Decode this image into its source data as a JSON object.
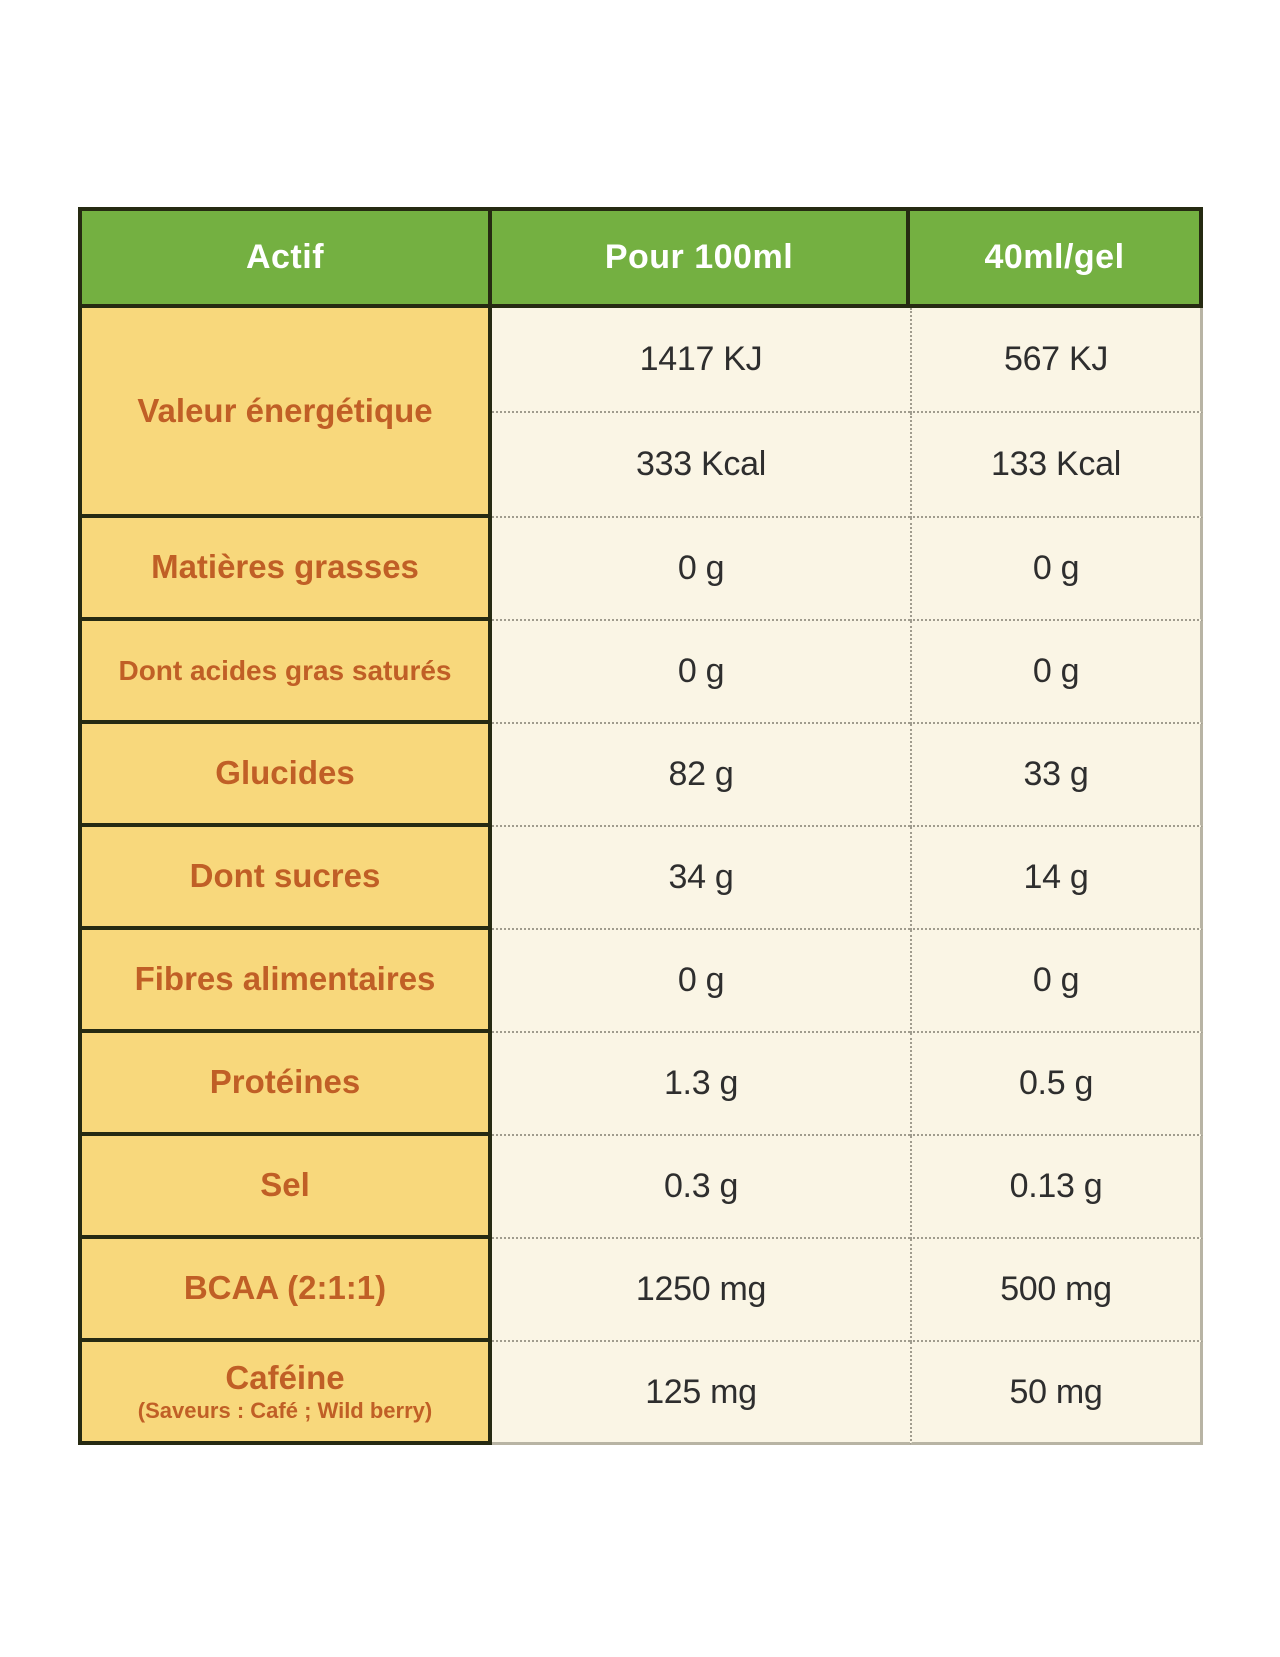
{
  "colors": {
    "header_green": "#74b041",
    "label_yellow": "#f8d87c",
    "value_cream": "#faf5e5",
    "label_orange": "#c05f26",
    "border_dark": "#262a12"
  },
  "table": {
    "columns": [
      {
        "label": "Actif"
      },
      {
        "label": "Pour 100ml"
      },
      {
        "label": "40ml/gel"
      }
    ],
    "energy_row": {
      "label": "Valeur énergétique",
      "sub_rows": [
        {
          "per_100ml": "1417 KJ",
          "per_gel": "567 KJ"
        },
        {
          "per_100ml": "333 Kcal",
          "per_gel": "133 Kcal"
        }
      ]
    },
    "rows": [
      {
        "label": "Matières grasses",
        "per_100ml": "0 g",
        "per_gel": "0 g"
      },
      {
        "label": "Dont acides gras saturés",
        "per_100ml": "0 g",
        "per_gel": "0 g"
      },
      {
        "label": "Glucides",
        "per_100ml": "82 g",
        "per_gel": "33 g"
      },
      {
        "label": "Dont sucres",
        "per_100ml": "34 g",
        "per_gel": "14 g"
      },
      {
        "label": "Fibres alimentaires",
        "per_100ml": "0 g",
        "per_gel": "0 g"
      },
      {
        "label": "Protéines",
        "per_100ml": "1.3 g",
        "per_gel": "0.5 g"
      },
      {
        "label": "Sel",
        "per_100ml": "0.3 g",
        "per_gel": "0.13 g"
      },
      {
        "label": "BCAA (2:1:1)",
        "per_100ml": "1250 mg",
        "per_gel": "500 mg"
      },
      {
        "label": "Caféine",
        "sublabel": "(Saveurs : Café ; Wild berry)",
        "per_100ml": "125 mg",
        "per_gel": "50 mg"
      }
    ]
  }
}
